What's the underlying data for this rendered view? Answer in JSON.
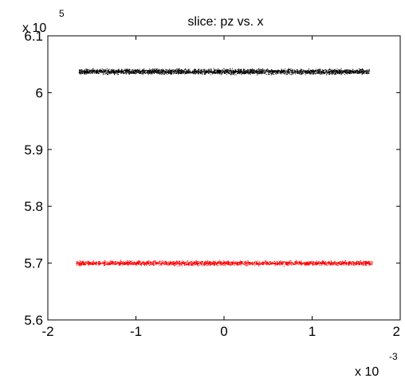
{
  "chart_data": {
    "type": "scatter",
    "title": "slice: pz vs. x",
    "xlabel": "",
    "ylabel": "",
    "xlim": [
      -0.002,
      0.002
    ],
    "ylim": [
      560000,
      610000
    ],
    "x_ticks": [
      -2,
      -1,
      0,
      1,
      2
    ],
    "x_tick_labels": [
      "-2",
      "-1",
      "0",
      "1",
      "2"
    ],
    "y_ticks": [
      5.6,
      5.7,
      5.8,
      5.9,
      6.0,
      6.1
    ],
    "y_tick_labels": [
      "5.6",
      "5.7",
      "5.8",
      "5.9",
      "6",
      "6.1"
    ],
    "x_multiplier": {
      "base": "x 10",
      "exponent": "-3"
    },
    "y_multiplier": {
      "base": "x 10",
      "exponent": "5"
    },
    "grid": false,
    "series": [
      {
        "color": "#000000",
        "x_range": [
          -0.00165,
          0.00165
        ],
        "y_range": [
          603100,
          604400
        ],
        "y_center": 603700,
        "approx_points": 3000
      },
      {
        "color": "#ff0000",
        "x_range": [
          -0.00168,
          0.00168
        ],
        "y_range": [
          569500,
          570600
        ],
        "y_center": 570000,
        "approx_points": 2500
      }
    ]
  }
}
